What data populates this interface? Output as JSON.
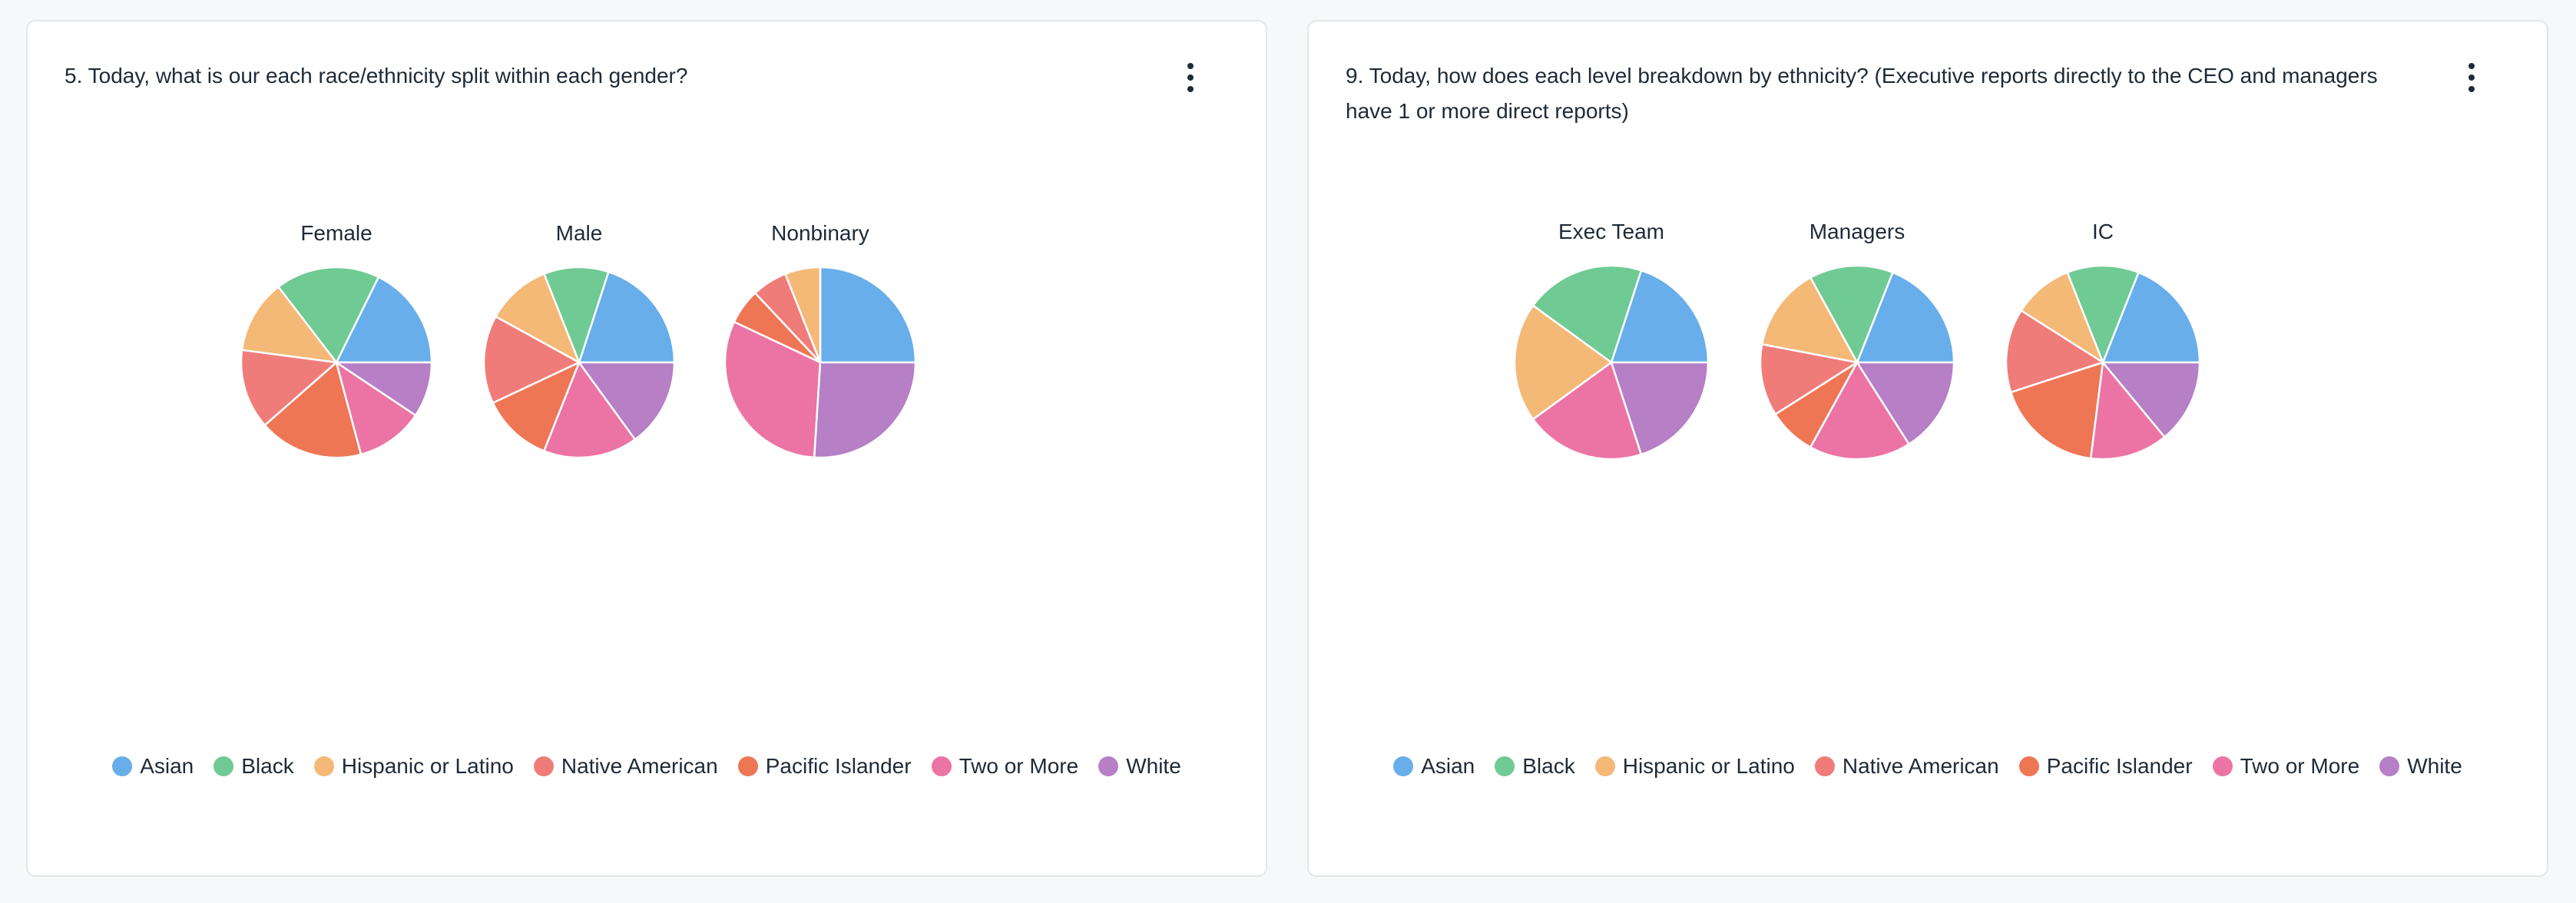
{
  "colors": {
    "Asian": "#67aeea",
    "Black": "#6fca93",
    "Hispanic or Latino": "#f4b877",
    "Native American": "#f07c7a",
    "Pacific Islander": "#ee7655",
    "Two or More": "#ec74a4",
    "White": "#b67fc6"
  },
  "chart_data": [
    {
      "type": "pie",
      "title": "5. Today, what is our each race/ethnicity split within each gender?",
      "legend": [
        "Asian",
        "Black",
        "Hispanic or Latino",
        "Native American",
        "Pacific Islander",
        "Two or More",
        "White"
      ],
      "pies": [
        {
          "label": "Female",
          "values": [
            17,
            17,
            12,
            13,
            17,
            11,
            9
          ]
        },
        {
          "label": "Male",
          "values": [
            20,
            11,
            11,
            15,
            12,
            16,
            15
          ]
        },
        {
          "label": "Nonbinary",
          "values": [
            25,
            0,
            6,
            6,
            6,
            31,
            26
          ]
        }
      ]
    },
    {
      "type": "pie",
      "title": "9. Today, how does each level breakdown by ethnicity? (Executive reports directly to the CEO and managers have 1 or more direct reports)",
      "legend": [
        "Asian",
        "Black",
        "Hispanic or Latino",
        "Native American",
        "Pacific Islander",
        "Two or More",
        "White"
      ],
      "pies": [
        {
          "label": "Exec Team",
          "values": [
            20,
            20,
            20,
            0,
            0,
            20,
            20
          ]
        },
        {
          "label": "Managers",
          "values": [
            19,
            14,
            14,
            12,
            8,
            17,
            16
          ]
        },
        {
          "label": "IC",
          "values": [
            19,
            12,
            10,
            14,
            18,
            13,
            14
          ]
        }
      ]
    }
  ]
}
